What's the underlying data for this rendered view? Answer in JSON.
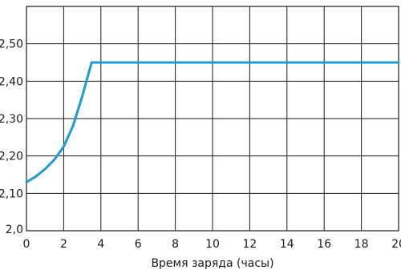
{
  "chart_data": {
    "type": "line",
    "xlabel": "Время заряда (часы)",
    "ylabel": "",
    "title": "",
    "xlim": [
      0,
      20
    ],
    "ylim": [
      2.0,
      2.6
    ],
    "x_ticks": [
      0,
      2,
      4,
      6,
      8,
      10,
      12,
      14,
      16,
      18,
      20
    ],
    "x_tick_labels": [
      "0",
      "2",
      "4",
      "6",
      "8",
      "10",
      "12",
      "14",
      "16",
      "18",
      "20"
    ],
    "y_ticks": [
      2.0,
      2.1,
      2.2,
      2.3,
      2.4,
      2.5
    ],
    "y_tick_labels": [
      "2,0",
      "2,10",
      "2,20",
      "2,30",
      "2,40",
      "2,50"
    ],
    "grid": true,
    "series": [
      {
        "color": "#1e9ad6",
        "x": [
          0,
          0.5,
          1.0,
          1.5,
          2.0,
          2.5,
          3.0,
          3.5,
          4,
          6,
          8,
          10,
          12,
          14,
          16,
          18,
          20
        ],
        "y": [
          2.13,
          2.145,
          2.165,
          2.19,
          2.225,
          2.28,
          2.36,
          2.45,
          2.45,
          2.45,
          2.45,
          2.45,
          2.45,
          2.45,
          2.45,
          2.45,
          2.45
        ]
      }
    ]
  }
}
